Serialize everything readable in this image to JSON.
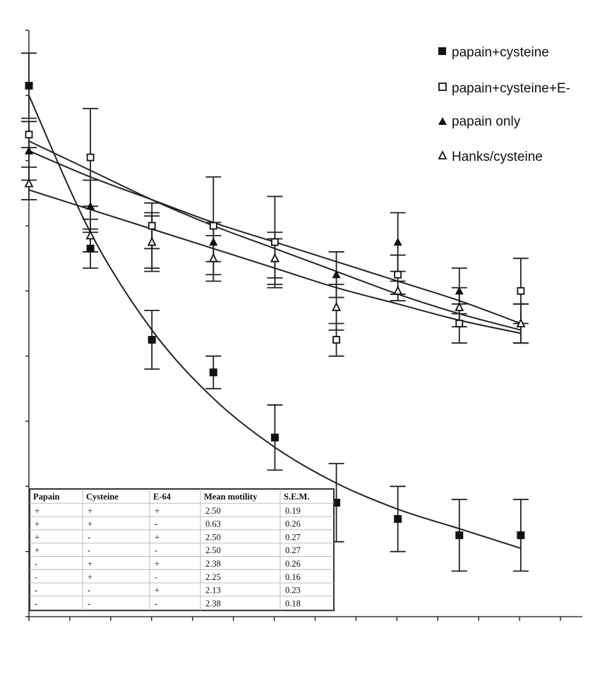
{
  "chart_data": {
    "type": "scatter",
    "x": [
      0,
      1,
      2,
      3,
      4,
      5,
      6,
      7,
      8
    ],
    "xlim": [
      0,
      9
    ],
    "ylim": [
      0,
      9
    ],
    "grid": false,
    "legend_position": "top-right",
    "series": [
      {
        "name": "papain+cysteine",
        "marker": "filled-square",
        "values": [
          8.15,
          5.65,
          4.25,
          3.75,
          2.75,
          1.75,
          1.5,
          1.25,
          1.25
        ],
        "errors": [
          0.5,
          0.3,
          0.45,
          0.25,
          0.5,
          0.6,
          0.5,
          0.55,
          0.55
        ],
        "fit": [
          8.0,
          5.9,
          4.4,
          3.35,
          2.6,
          2.05,
          1.65,
          1.35,
          1.05
        ]
      },
      {
        "name": "papain+cysteine+E-64",
        "marker": "open-square",
        "values": [
          7.4,
          7.05,
          6.0,
          6.0,
          5.75,
          4.25,
          5.25,
          4.5,
          5.0
        ],
        "errors": [
          0.2,
          0.75,
          0.35,
          0.75,
          0.7,
          0.25,
          0.3,
          0.3,
          0.5
        ],
        "fit": [
          7.3,
          6.85,
          6.4,
          6.0,
          5.65,
          5.3,
          4.95,
          4.65,
          4.4
        ]
      },
      {
        "name": "papain only",
        "marker": "filled-triangle",
        "values": [
          7.15,
          6.3,
          5.75,
          5.75,
          5.5,
          5.25,
          5.75,
          5.0,
          4.5
        ],
        "errors": [
          0.45,
          0.4,
          0.45,
          0.3,
          0.3,
          0.35,
          0.45,
          0.35,
          0.3
        ],
        "fit": [
          7.15,
          6.75,
          6.4,
          6.05,
          5.75,
          5.45,
          5.15,
          4.85,
          4.5
        ]
      },
      {
        "name": "Hanks/cysteine",
        "marker": "open-triangle",
        "values": [
          6.65,
          5.85,
          5.75,
          5.5,
          5.5,
          4.75,
          5.0,
          4.75,
          4.5
        ],
        "errors": [
          0.25,
          0.25,
          0.4,
          0.35,
          0.4,
          0.35,
          0.15,
          0.3,
          0.3
        ],
        "fit": [
          6.55,
          6.25,
          5.95,
          5.65,
          5.35,
          5.05,
          4.8,
          4.55,
          4.35
        ]
      }
    ],
    "legend": [
      "papain+cysteine",
      "papain+cysteine+E-",
      "papain only",
      "Hanks/cysteine"
    ],
    "table": {
      "headers": [
        "Papain",
        "Cysteine",
        "E-64",
        "Mean motility",
        "S.E.M."
      ],
      "rows": [
        [
          "+",
          "+",
          "+",
          "2.50",
          "0.19"
        ],
        [
          "+",
          "+",
          "-",
          "0.63",
          "0.26"
        ],
        [
          "+",
          "-",
          "+",
          "2.50",
          "0.27"
        ],
        [
          "+",
          "-",
          "-",
          "2.50",
          "0.27"
        ],
        [
          "-",
          "+",
          "+",
          "2.38",
          "0.26"
        ],
        [
          "-",
          "+",
          "-",
          "2.25",
          "0.16"
        ],
        [
          "-",
          "-",
          "+",
          "2.13",
          "0.23"
        ],
        [
          "-",
          "-",
          "-",
          "2.38",
          "0.18"
        ]
      ]
    }
  }
}
